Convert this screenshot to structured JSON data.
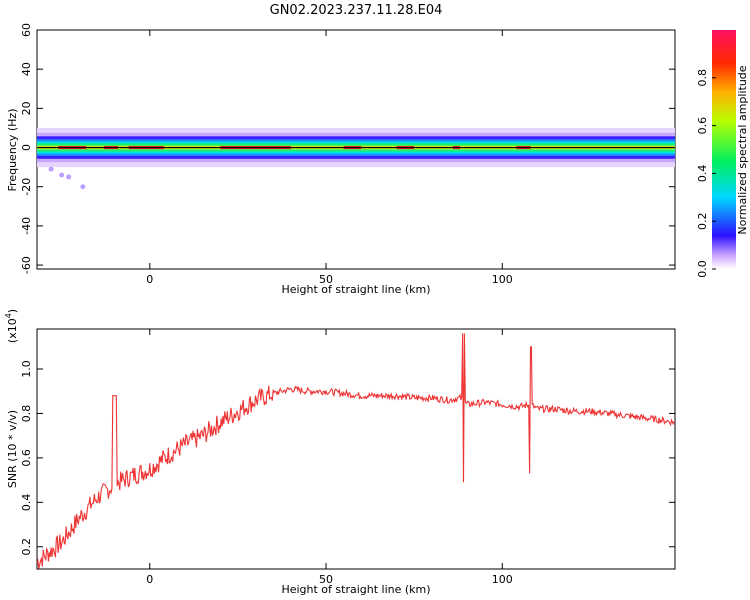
{
  "title": "GN02.2023.237.11.28.E04",
  "chart_data": [
    {
      "type": "heatmap",
      "xlabel": "Height of straight line (km)",
      "ylabel": "Frequency (Hz)",
      "xlim": [
        -32,
        149
      ],
      "ylim": [
        -62,
        60
      ],
      "xticks": [
        0,
        50,
        100
      ],
      "yticks": [
        60,
        40,
        20,
        0,
        -20,
        -40,
        -60
      ],
      "colorbar": {
        "label": "Normalized spectral amplitude",
        "range": [
          0,
          1
        ],
        "ticks": [
          0.0,
          0.2,
          0.4,
          0.6,
          0.8
        ]
      },
      "band": {
        "center_freq_hz": 0,
        "half_width_hz": 5,
        "peak_amplitude": 1.0,
        "note": "strong spectral band around 0 Hz across full height range"
      }
    },
    {
      "type": "line",
      "xlabel": "Height of straight line (km)",
      "ylabel": "SNR (10 * v/v)",
      "y_multiplier": "(x10^4)",
      "y_multiplier_base": "(x10",
      "y_multiplier_exp": "4",
      "xlim": [
        -32,
        149
      ],
      "ylim": [
        0.1,
        1.18
      ],
      "xticks": [
        0,
        50,
        100
      ],
      "yticks": [
        0.2,
        0.4,
        0.6,
        0.8,
        1.0
      ],
      "series": [
        {
          "color": "#ee3333",
          "x": [
            -32,
            -25,
            -20,
            -15,
            -10,
            -5,
            0,
            5,
            10,
            15,
            20,
            25,
            30,
            35,
            40,
            45,
            50,
            55,
            60,
            65,
            70,
            75,
            80,
            85,
            88,
            90,
            95,
            100,
            105,
            108,
            110,
            115,
            120,
            125,
            130,
            135,
            140,
            145,
            149
          ],
          "values": [
            0.13,
            0.22,
            0.33,
            0.42,
            0.48,
            0.52,
            0.55,
            0.61,
            0.66,
            0.7,
            0.76,
            0.81,
            0.86,
            0.89,
            0.91,
            0.9,
            0.9,
            0.89,
            0.88,
            0.88,
            0.88,
            0.87,
            0.87,
            0.86,
            0.87,
            0.84,
            0.85,
            0.84,
            0.83,
            0.84,
            0.82,
            0.82,
            0.81,
            0.81,
            0.8,
            0.79,
            0.78,
            0.77,
            0.76
          ]
        }
      ]
    }
  ]
}
